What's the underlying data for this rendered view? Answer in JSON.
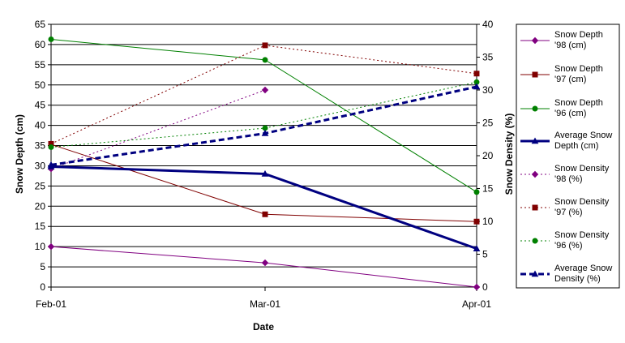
{
  "chart_data": {
    "type": "line",
    "categories": [
      "Feb-01",
      "Mar-01",
      "Apr-01"
    ],
    "xlabel": "Date",
    "ylabel": "Snow Depth (cm)",
    "y2label": "Snow Density (%)",
    "ylim": [
      0,
      65
    ],
    "ytick_step": 5,
    "y2lim": [
      0,
      40
    ],
    "y2tick_step": 5,
    "grid": "horizontal",
    "legend_position": "right",
    "series": [
      {
        "name": "Snow Depth '98 (cm)",
        "axis": "left",
        "color": "#800080",
        "dash": "solid",
        "width": 1,
        "marker": "diamond",
        "values": [
          10,
          6,
          0
        ]
      },
      {
        "name": "Snow Depth '97 (cm)",
        "axis": "left",
        "color": "#800000",
        "dash": "solid",
        "width": 1,
        "marker": "square",
        "values": [
          35.3,
          18,
          16.2
        ]
      },
      {
        "name": "Snow Depth '96 (cm)",
        "axis": "left",
        "color": "#008000",
        "dash": "solid",
        "width": 1,
        "marker": "circle",
        "values": [
          61.3,
          56.2,
          23.5
        ]
      },
      {
        "name": "Average Snow Depth (cm)",
        "axis": "left",
        "color": "#000080",
        "dash": "solid",
        "width": 3,
        "marker": "triangle",
        "values": [
          29.8,
          28,
          9.5
        ]
      },
      {
        "name": "Snow Density '98 (%)",
        "axis": "right",
        "color": "#800080",
        "dash": "dotted",
        "width": 1,
        "marker": "diamond",
        "values": [
          18,
          30,
          null
        ]
      },
      {
        "name": "Snow Density '97 (%)",
        "axis": "right",
        "color": "#800000",
        "dash": "dotted",
        "width": 1,
        "marker": "square",
        "values": [
          21.8,
          36.8,
          32.5
        ]
      },
      {
        "name": "Snow Density '96 (%)",
        "axis": "right",
        "color": "#008000",
        "dash": "dotted",
        "width": 1,
        "marker": "circle",
        "values": [
          21.3,
          24.2,
          31.2
        ]
      },
      {
        "name": "Average Snow Density (%)",
        "axis": "right",
        "color": "#000080",
        "dash": "dashed",
        "width": 3,
        "marker": "triangle",
        "values": [
          18.6,
          23.4,
          30.5
        ]
      }
    ],
    "legend_lines": [
      [
        "Snow Depth",
        "'98 (cm)"
      ],
      [
        "Snow Depth",
        "'97 (cm)"
      ],
      [
        "Snow Depth",
        "'96 (cm)"
      ],
      [
        "Average Snow",
        "Depth (cm)"
      ],
      [
        "Snow Density",
        "'98 (%)"
      ],
      [
        "Snow Density",
        "'97 (%)"
      ],
      [
        "Snow Density",
        "'96 (%)"
      ],
      [
        "Average Snow",
        "Density (%)"
      ]
    ]
  }
}
